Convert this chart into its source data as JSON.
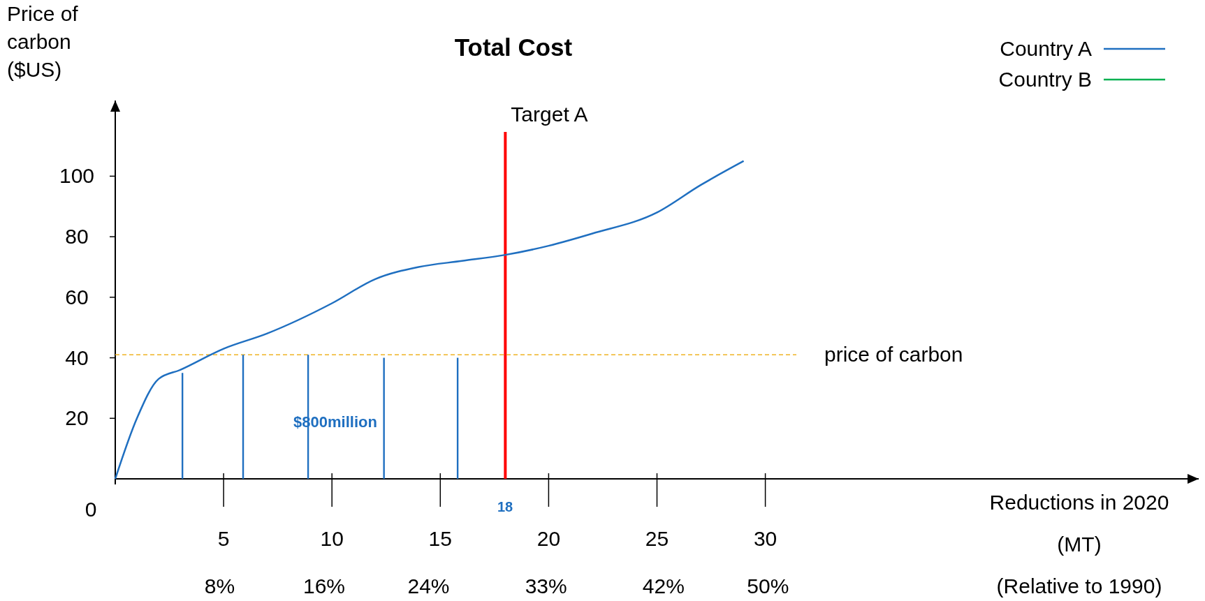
{
  "chart_data": {
    "type": "line",
    "title": "Total Cost",
    "xlabel": "Reductions in 2020 (MT)",
    "x2label": "(Relative to 1990)",
    "ylabel": "Price of carbon ($US)",
    "xlim": [
      0,
      50
    ],
    "ylim": [
      0,
      125
    ],
    "xticks": [
      5,
      10,
      15,
      20,
      25,
      30
    ],
    "x2lim": [
      0,
      83
    ],
    "x2ticks": [
      {
        "value": 8,
        "label": "8%"
      },
      {
        "value": 16,
        "label": "16%"
      },
      {
        "value": 24,
        "label": "24%"
      },
      {
        "value": 33,
        "label": "33%"
      },
      {
        "value": 42,
        "label": "42%"
      },
      {
        "value": 50,
        "label": "50%"
      }
    ],
    "yticks": [
      20,
      40,
      60,
      80,
      100
    ],
    "legend": "top right",
    "grid": false,
    "marker": "none",
    "line_style": "solid",
    "series": [
      {
        "name": "Country A",
        "color": "#1f6fc0",
        "x": [
          0,
          1,
          2,
          3,
          5,
          7,
          10,
          12,
          14,
          16,
          18,
          20,
          22,
          25,
          27,
          29
        ],
        "values": [
          0,
          20,
          33,
          36,
          43,
          48,
          58,
          66,
          70,
          72,
          74,
          77,
          81,
          88,
          97,
          105
        ]
      },
      {
        "name": "Country B",
        "color": "#00b050"
      },
      {
        "type": "bar",
        "color": "#1f6fc0",
        "x": [
          3.1,
          5.9,
          8.9,
          12.4,
          15.8
        ],
        "values": [
          35,
          41,
          41,
          40,
          40
        ]
      }
    ],
    "ref_lines": [
      {
        "axis": "x",
        "value": 18,
        "label": "Target A",
        "color": "#ff0000",
        "line_style": "solid"
      },
      {
        "axis": "y",
        "value": 41,
        "label": "price of carbon",
        "color": "#f0b323",
        "line_style": "dashed"
      }
    ],
    "annotations": [
      "0",
      "$800million",
      "18"
    ]
  }
}
